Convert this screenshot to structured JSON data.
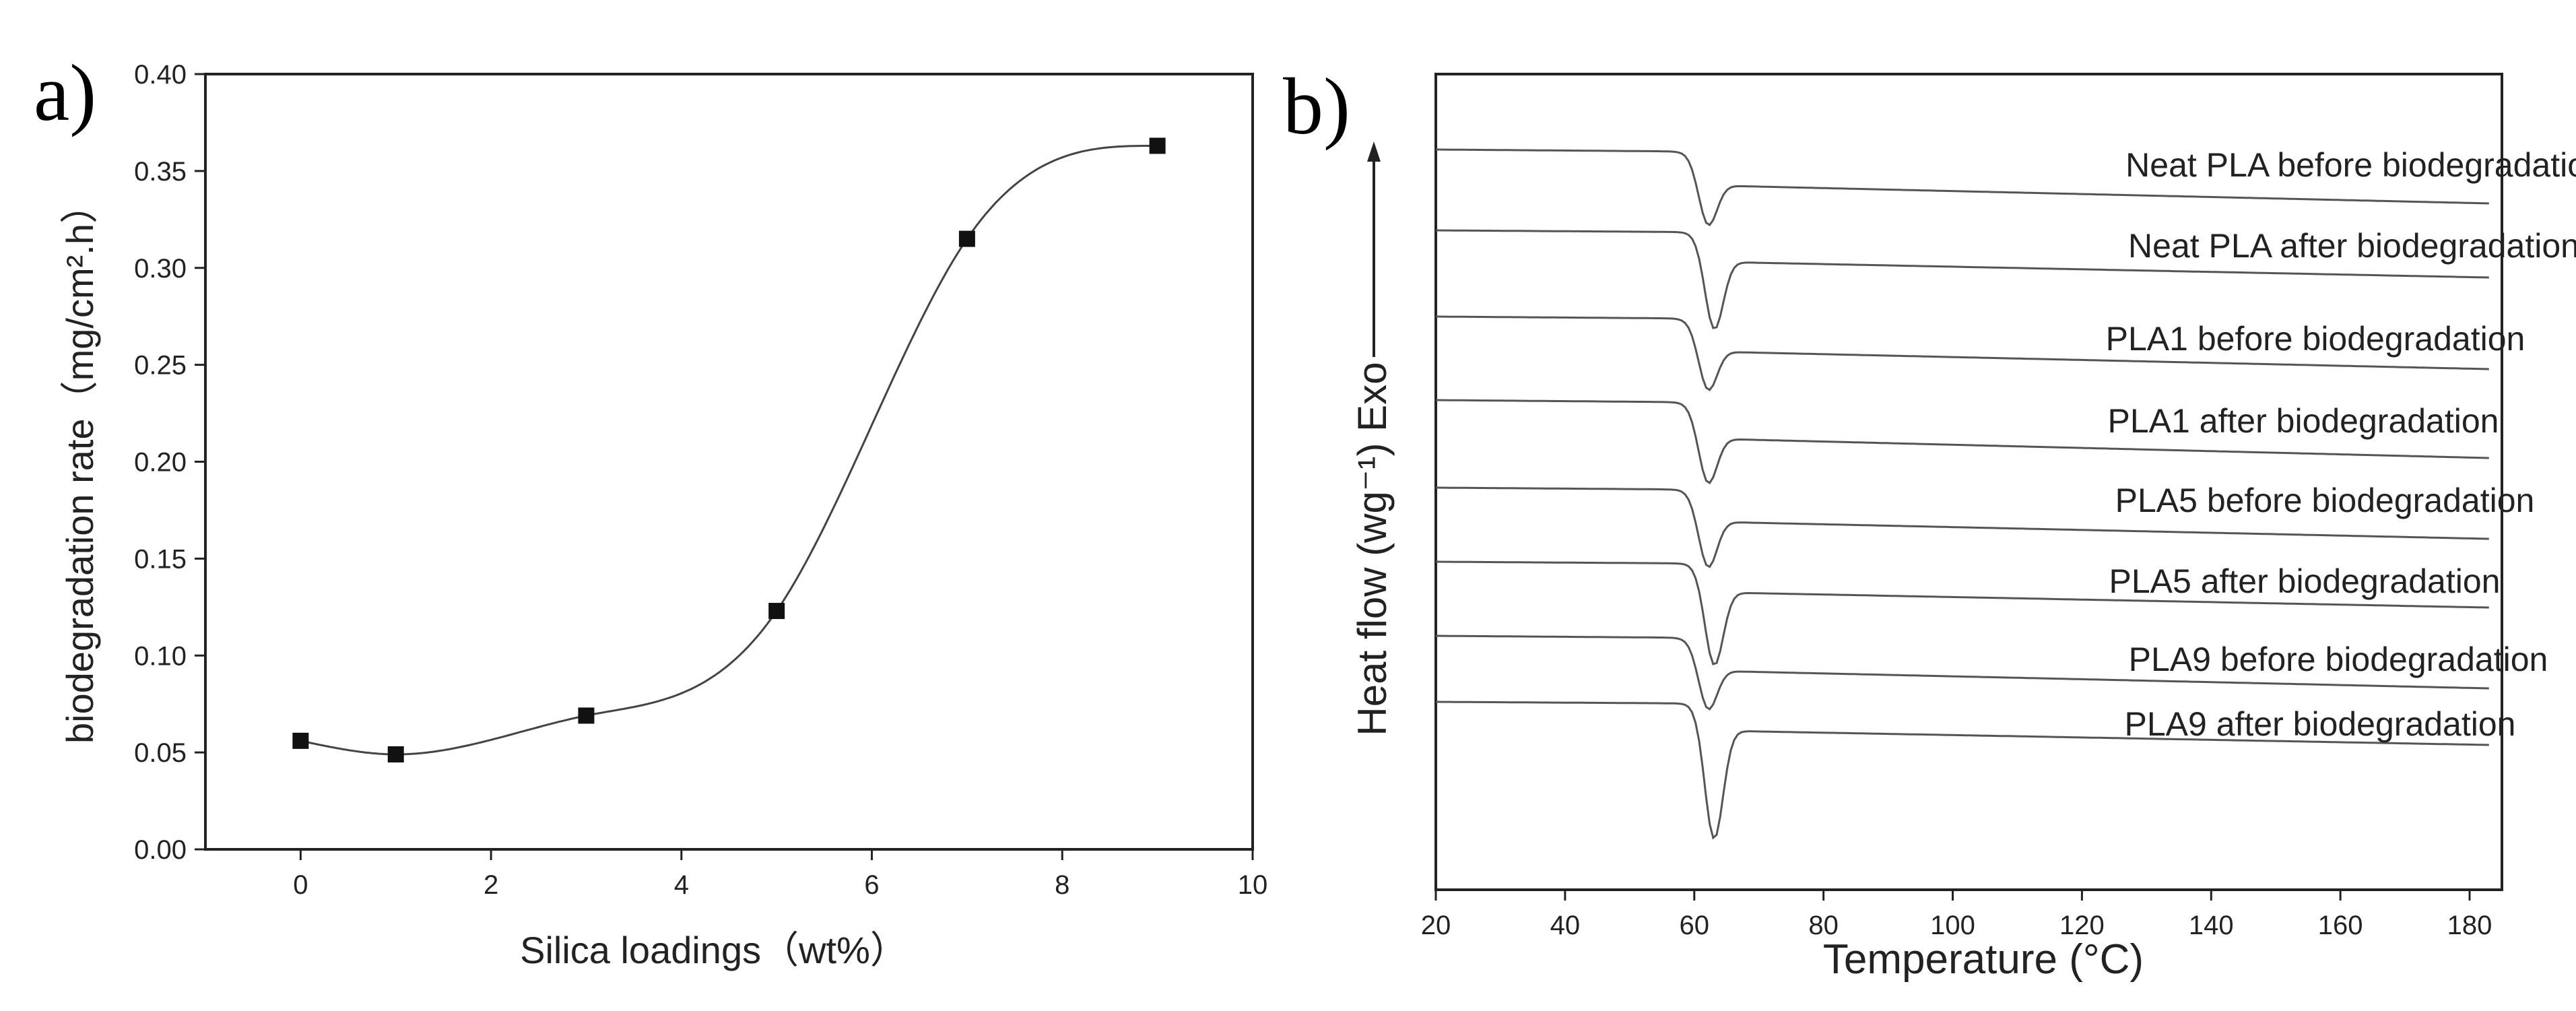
{
  "chart_data": [
    {
      "panel_label": "a)",
      "type": "scatter",
      "xlabel": "Silica loadings（wt%）",
      "ylabel": "biodegradation rate（mg/cm².h）",
      "xlim": [
        -1,
        10
      ],
      "ylim": [
        0,
        0.4
      ],
      "xticks": [
        "0",
        "2",
        "4",
        "6",
        "8",
        "10"
      ],
      "yticks": [
        "0.00",
        "0.05",
        "0.10",
        "0.15",
        "0.20",
        "0.25",
        "0.30",
        "0.35",
        "0.40"
      ],
      "series": [
        {
          "x": [
            0,
            1,
            3,
            5,
            7,
            9
          ],
          "y": [
            0.056,
            0.049,
            0.069,
            0.123,
            0.315,
            0.363
          ]
        }
      ],
      "marker": "square",
      "smooth_fit_line": true,
      "grid": false
    },
    {
      "panel_label": "b)",
      "type": "line",
      "xlabel": "Temperature (°C)",
      "ylabel": "Heat flow (wg⁻¹) Exo",
      "xlim": [
        20,
        185
      ],
      "xticks": [
        "20",
        "40",
        "60",
        "80",
        "100",
        "120",
        "140",
        "160",
        "180"
      ],
      "y_axis_unlabeled": true,
      "grid": false,
      "series": [
        {
          "name": "Neat PLA before biodegradation",
          "peak_temperature": 62
        },
        {
          "name": "Neat PLA after biodegradation",
          "peak_temperature": 63
        },
        {
          "name": "PLA1 before biodegradation",
          "peak_temperature": 62
        },
        {
          "name": "PLA1 after biodegradation",
          "peak_temperature": 62
        },
        {
          "name": "PLA5 before biodegradation",
          "peak_temperature": 62
        },
        {
          "name": "PLA5 after biodegradation",
          "peak_temperature": 63
        },
        {
          "name": "PLA9 before biodegradation",
          "peak_temperature": 62
        },
        {
          "name": "PLA9 after biodegradation",
          "peak_temperature": 63
        }
      ]
    }
  ]
}
